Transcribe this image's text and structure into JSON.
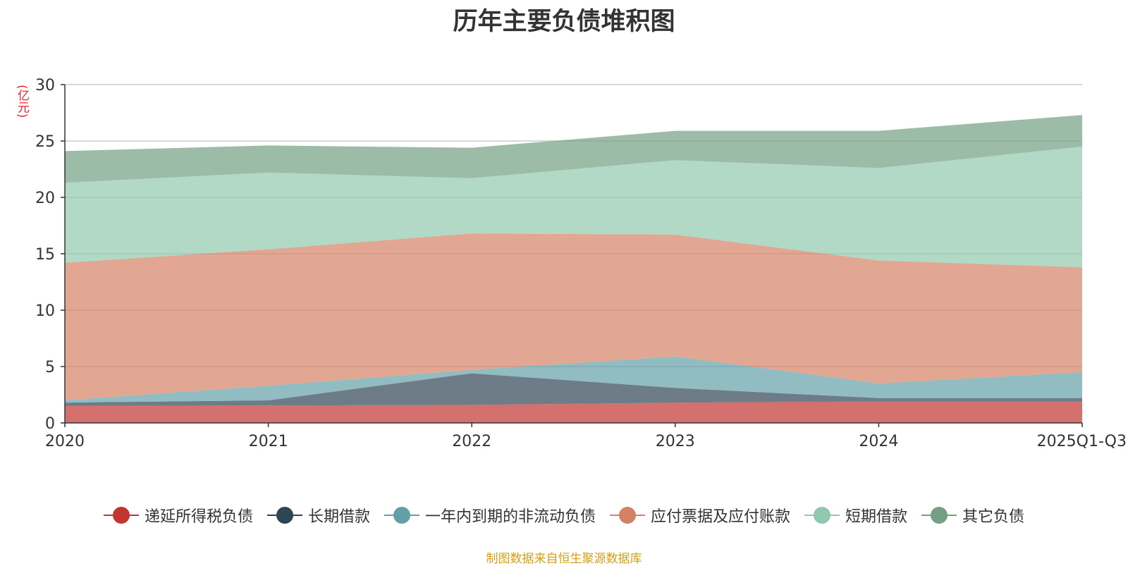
{
  "chart_data": {
    "type": "area",
    "stacked": true,
    "title": "历年主要负债堆积图",
    "unit_label": "(亿元)",
    "categories": [
      "2020",
      "2021",
      "2022",
      "2023",
      "2024",
      "2025Q1-Q3"
    ],
    "ylim": [
      0,
      30
    ],
    "yticks": [
      0,
      5,
      10,
      15,
      20,
      25,
      30
    ],
    "grid": true,
    "legend_position": "bottom",
    "series": [
      {
        "name": "递延所得税负债",
        "color": "#c23531",
        "values": [
          1.5,
          1.55,
          1.6,
          1.8,
          1.9,
          1.9
        ]
      },
      {
        "name": "长期借款",
        "color": "#2f4554",
        "values": [
          0.3,
          0.45,
          2.8,
          1.3,
          0.3,
          0.3
        ]
      },
      {
        "name": "一年内到期的非流动负债",
        "color": "#61a0a8",
        "values": [
          0.2,
          1.3,
          0.3,
          2.8,
          1.3,
          2.3
        ]
      },
      {
        "name": "应付票据及应付账款",
        "color": "#d48265",
        "values": [
          12.2,
          12.1,
          12.1,
          10.8,
          10.9,
          9.3
        ]
      },
      {
        "name": "短期借款",
        "color": "#91c7ae",
        "values": [
          7.1,
          6.8,
          4.9,
          6.6,
          8.2,
          10.7
        ]
      },
      {
        "name": "其它负债",
        "color": "#749f83",
        "values": [
          2.8,
          2.4,
          2.7,
          2.6,
          3.3,
          2.8
        ]
      }
    ]
  },
  "source_note": "制图数据来自恒生聚源数据库"
}
